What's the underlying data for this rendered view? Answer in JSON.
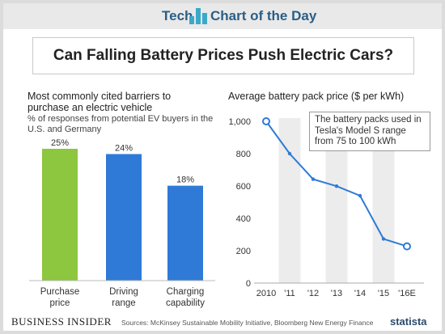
{
  "header": {
    "brand_left": "Tech",
    "brand_right": "Chart of the Day",
    "logo_icon": "bar-blocks-icon",
    "accent_color": "#3aa9c9"
  },
  "title": "Can Falling Battery Prices Push Electric Cars?",
  "footer": {
    "publisher": "BUSINESS INSIDER",
    "sources": "Sources: McKinsey Sustainable Mobility Initiative, Bloomberg New Energy Finance",
    "statista": "statista"
  },
  "annotation": "The battery packs used in Tesla's Model S range from 75 to 100 kWh",
  "chart_data": [
    {
      "type": "bar",
      "title": "Most commonly cited barriers to purchase an electric vehicle",
      "subtitle": "% of responses from potential EV buyers in the U.S. and Germany",
      "categories": [
        "Purchase price",
        "Driving range",
        "Charging capability"
      ],
      "values": [
        25,
        24,
        18
      ],
      "data_labels": [
        "25%",
        "24%",
        "18%"
      ],
      "colors": [
        "#8dc63f",
        "#2e7ad6",
        "#2e7ad6"
      ],
      "ylim": [
        0,
        25
      ],
      "grid": false
    },
    {
      "type": "line",
      "title": "Average battery pack price ($ per kWh)",
      "x": [
        "2010",
        "'11",
        "'12",
        "'13",
        "'14",
        "'15",
        "'16E"
      ],
      "values": [
        1000,
        800,
        642,
        599,
        540,
        273,
        227
      ],
      "y_ticks": [
        "0",
        "200",
        "400",
        "600",
        "800",
        "1,000"
      ],
      "ylim": [
        0,
        1000
      ],
      "line_color": "#2e7ad6",
      "grid": "alternating vertical bands"
    }
  ]
}
